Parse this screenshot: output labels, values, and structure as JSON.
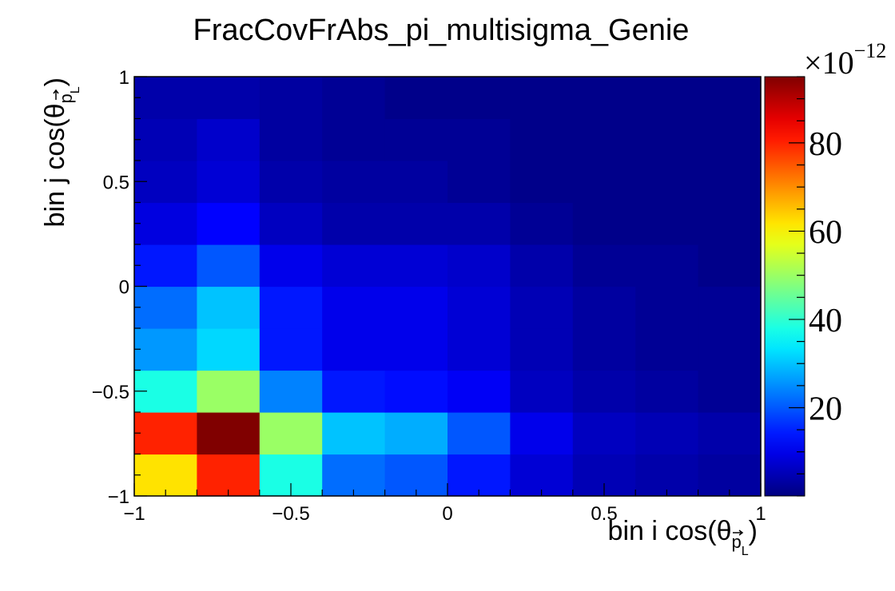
{
  "chart_data": {
    "type": "heatmap",
    "title": "FracCovFrAbs_pi_multisigma_Genie",
    "xlabel": {
      "main": "bin i cos(θ",
      "sub": "p",
      "subsub": "L",
      "close": ")"
    },
    "ylabel": {
      "main": "bin j cos(θ",
      "sub": "p",
      "subsub": "L",
      "close": ")"
    },
    "x_edges": [
      -1.0,
      -0.8,
      -0.6,
      -0.4,
      -0.2,
      0.0,
      0.2,
      0.4,
      0.6,
      0.8,
      1.0
    ],
    "y_edges": [
      -1.0,
      -0.8,
      -0.6,
      -0.4,
      -0.2,
      0.0,
      0.2,
      0.4,
      0.6,
      0.8,
      1.0
    ],
    "xlim": [
      -1,
      1
    ],
    "ylim": [
      -1,
      1
    ],
    "x_ticks": [
      -1,
      -0.5,
      0,
      0.5,
      1
    ],
    "y_ticks": [
      -1,
      -0.5,
      0,
      0.5,
      1
    ],
    "x_tick_labels": [
      "−1",
      "−0.5",
      "0",
      "0.5",
      "1"
    ],
    "y_tick_labels": [
      "−1",
      "−0.5",
      "0",
      "0.5",
      "1"
    ],
    "z_multiplier": "10",
    "z_exponent": "−12",
    "z_range": [
      0,
      95
    ],
    "z_ticks": [
      20,
      40,
      60,
      80
    ],
    "z_tick_labels": [
      "20",
      "40",
      "60",
      "80"
    ],
    "colorscale": "jet",
    "values_rows_bottom_to_top": [
      [
        62,
        80,
        38,
        22,
        20,
        14,
        8,
        5,
        4,
        3
      ],
      [
        80,
        95,
        50,
        30,
        28,
        20,
        10,
        6,
        5,
        4
      ],
      [
        38,
        50,
        24,
        14,
        13,
        11,
        6,
        4,
        3,
        2
      ],
      [
        26,
        32,
        14,
        10,
        10,
        8,
        5,
        3,
        2,
        2
      ],
      [
        22,
        30,
        14,
        10,
        10,
        8,
        5,
        3,
        2,
        2
      ],
      [
        14,
        20,
        10,
        8,
        8,
        7,
        4,
        2,
        2,
        1
      ],
      [
        9,
        12,
        6,
        4,
        4,
        4,
        2,
        1,
        1,
        1
      ],
      [
        6,
        8,
        4,
        3,
        3,
        2,
        1,
        1,
        1,
        1
      ],
      [
        5,
        7,
        3,
        2,
        2,
        2,
        1,
        1,
        1,
        1
      ],
      [
        4,
        4,
        3,
        2,
        1,
        1,
        1,
        1,
        1,
        1
      ]
    ]
  }
}
